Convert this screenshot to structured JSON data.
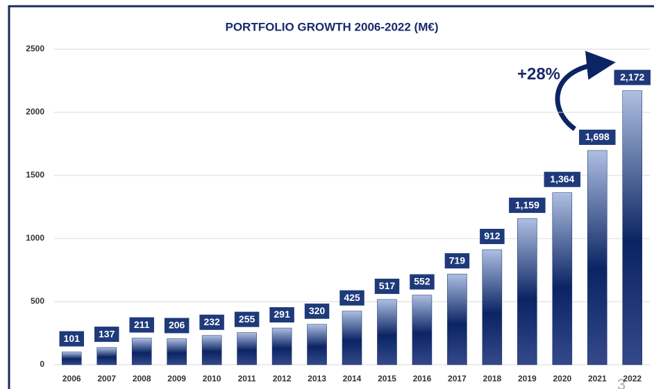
{
  "chart_data": {
    "type": "bar",
    "title": "PORTFOLIO GROWTH 2006-2022 (M€)",
    "categories": [
      "2006",
      "2007",
      "2008",
      "2009",
      "2010",
      "2011",
      "2012",
      "2013",
      "2014",
      "2015",
      "2016",
      "2017",
      "2018",
      "2019",
      "2020",
      "2021",
      "2022"
    ],
    "values": [
      101,
      137,
      211,
      206,
      232,
      255,
      291,
      320,
      425,
      517,
      552,
      719,
      912,
      1159,
      1364,
      1698,
      2172
    ],
    "value_labels": [
      "101",
      "137",
      "211",
      "206",
      "232",
      "255",
      "291",
      "320",
      "425",
      "517",
      "552",
      "719",
      "912",
      "1,159",
      "1,364",
      "1,698",
      "2,172"
    ],
    "color": "#0b2463",
    "ylim": [
      0,
      2500
    ],
    "yticks": [
      0,
      500,
      1000,
      1500,
      2000,
      2500
    ],
    "grid": true,
    "annotation": "+28%",
    "page_number": "3"
  }
}
